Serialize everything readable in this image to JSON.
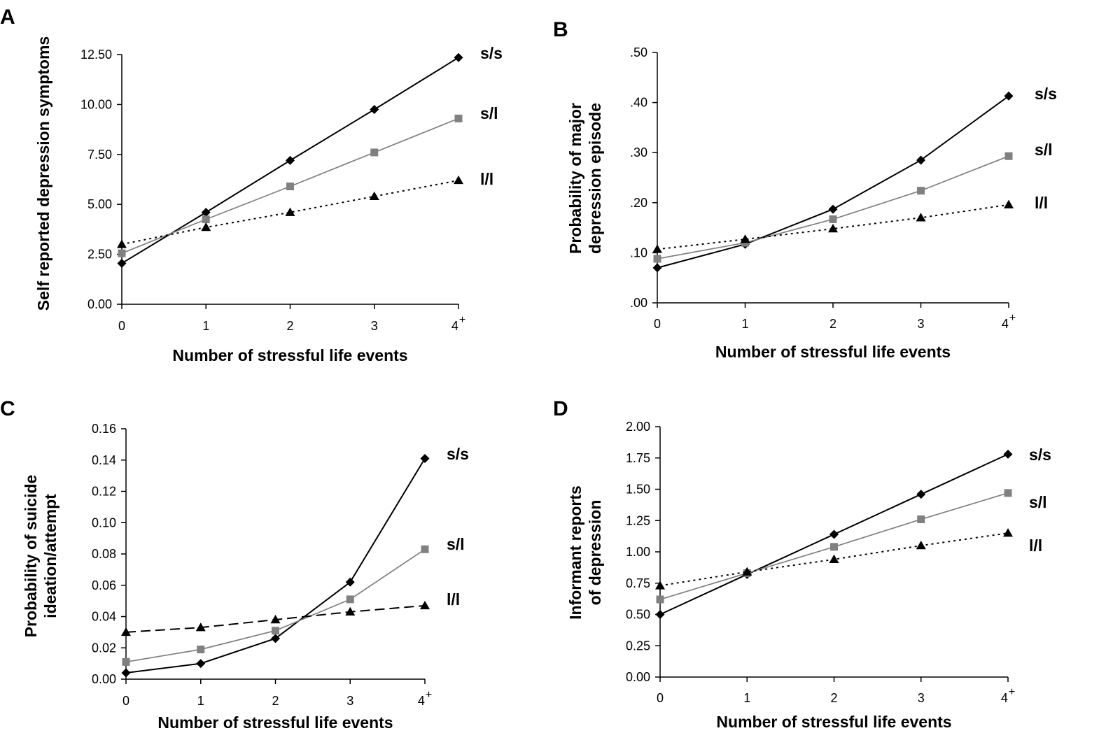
{
  "chart_data": [
    {
      "type": "line",
      "panel": "A",
      "x": [
        "0",
        "1",
        "2",
        "3",
        "4"
      ],
      "x_superscript": "+",
      "xlabel": "Number of stressful life events",
      "ylabel": "Self reported depression symptoms",
      "ylim": [
        0,
        12.5
      ],
      "yticks": [
        "0.00",
        "2.50",
        "5.00",
        "7.50",
        "10.00",
        "12.50"
      ],
      "ytick_values": [
        0,
        2.5,
        5,
        7.5,
        10,
        12.5
      ],
      "series": [
        {
          "name": "s/s",
          "values": [
            2.05,
            4.6,
            7.2,
            9.75,
            12.35
          ],
          "color": "#000000",
          "marker": "diamond",
          "dash": "solid"
        },
        {
          "name": "s/l",
          "values": [
            2.55,
            4.25,
            5.9,
            7.6,
            9.3
          ],
          "color": "#808080",
          "marker": "square",
          "dash": "solid"
        },
        {
          "name": "l/l",
          "values": [
            3.0,
            3.85,
            4.6,
            5.4,
            6.2
          ],
          "color": "#000000",
          "marker": "triangle",
          "dash": "dotted"
        }
      ]
    },
    {
      "type": "line",
      "panel": "B",
      "x": [
        "0",
        "1",
        "2",
        "3",
        "4"
      ],
      "x_superscript": "+",
      "xlabel": "Number of stressful life events",
      "ylabel": [
        "Probability of major",
        "depression episode"
      ],
      "ylim": [
        0,
        0.5
      ],
      "yticks": [
        ".00",
        ".10",
        ".20",
        ".30",
        ".40",
        ".50"
      ],
      "ytick_values": [
        0,
        0.1,
        0.2,
        0.3,
        0.4,
        0.5
      ],
      "series": [
        {
          "name": "s/s",
          "values": [
            0.07,
            0.117,
            0.187,
            0.285,
            0.413
          ],
          "color": "#000000",
          "marker": "diamond",
          "dash": "solid"
        },
        {
          "name": "s/l",
          "values": [
            0.088,
            0.12,
            0.167,
            0.224,
            0.293
          ],
          "color": "#808080",
          "marker": "square",
          "dash": "solid"
        },
        {
          "name": "l/l",
          "values": [
            0.107,
            0.127,
            0.148,
            0.17,
            0.196
          ],
          "color": "#000000",
          "marker": "triangle",
          "dash": "dotted"
        }
      ]
    },
    {
      "type": "line",
      "panel": "C",
      "x": [
        "0",
        "1",
        "2",
        "3",
        "4"
      ],
      "x_superscript": "+",
      "xlabel": "Number of stressful life events",
      "ylabel": [
        "Probability of suicide",
        "ideation/attempt"
      ],
      "ylim": [
        0,
        0.16
      ],
      "yticks": [
        "0.00",
        "0.02",
        "0.04",
        "0.06",
        "0.08",
        "0.10",
        "0.12",
        "0.14",
        "0.16"
      ],
      "ytick_values": [
        0,
        0.02,
        0.04,
        0.06,
        0.08,
        0.1,
        0.12,
        0.14,
        0.16
      ],
      "series": [
        {
          "name": "s/s",
          "values": [
            0.004,
            0.01,
            0.026,
            0.062,
            0.141
          ],
          "color": "#000000",
          "marker": "diamond",
          "dash": "solid"
        },
        {
          "name": "s/l",
          "values": [
            0.011,
            0.019,
            0.031,
            0.051,
            0.083
          ],
          "color": "#808080",
          "marker": "square",
          "dash": "solid"
        },
        {
          "name": "l/l",
          "values": [
            0.03,
            0.033,
            0.038,
            0.043,
            0.047
          ],
          "color": "#000000",
          "marker": "triangle",
          "dash": "dashed"
        }
      ]
    },
    {
      "type": "line",
      "panel": "D",
      "x": [
        "0",
        "1",
        "2",
        "3",
        "4"
      ],
      "x_superscript": "+",
      "xlabel": "Number of stressful life events",
      "ylabel": [
        "Informant reports",
        "of depression"
      ],
      "ylim": [
        0,
        2.0
      ],
      "yticks": [
        "0.00",
        "0.25",
        "0.50",
        "0.75",
        "1.00",
        "1.25",
        "1.50",
        "1.75",
        "2.00"
      ],
      "ytick_values": [
        0,
        0.25,
        0.5,
        0.75,
        1.0,
        1.25,
        1.5,
        1.75,
        2.0
      ],
      "series": [
        {
          "name": "s/s",
          "values": [
            0.5,
            0.82,
            1.14,
            1.46,
            1.78
          ],
          "color": "#000000",
          "marker": "diamond",
          "dash": "solid"
        },
        {
          "name": "s/l",
          "values": [
            0.62,
            0.83,
            1.04,
            1.26,
            1.47
          ],
          "color": "#808080",
          "marker": "square",
          "dash": "solid"
        },
        {
          "name": "l/l",
          "values": [
            0.73,
            0.84,
            0.94,
            1.05,
            1.15
          ],
          "color": "#000000",
          "marker": "triangle",
          "dash": "dotted"
        }
      ]
    }
  ]
}
